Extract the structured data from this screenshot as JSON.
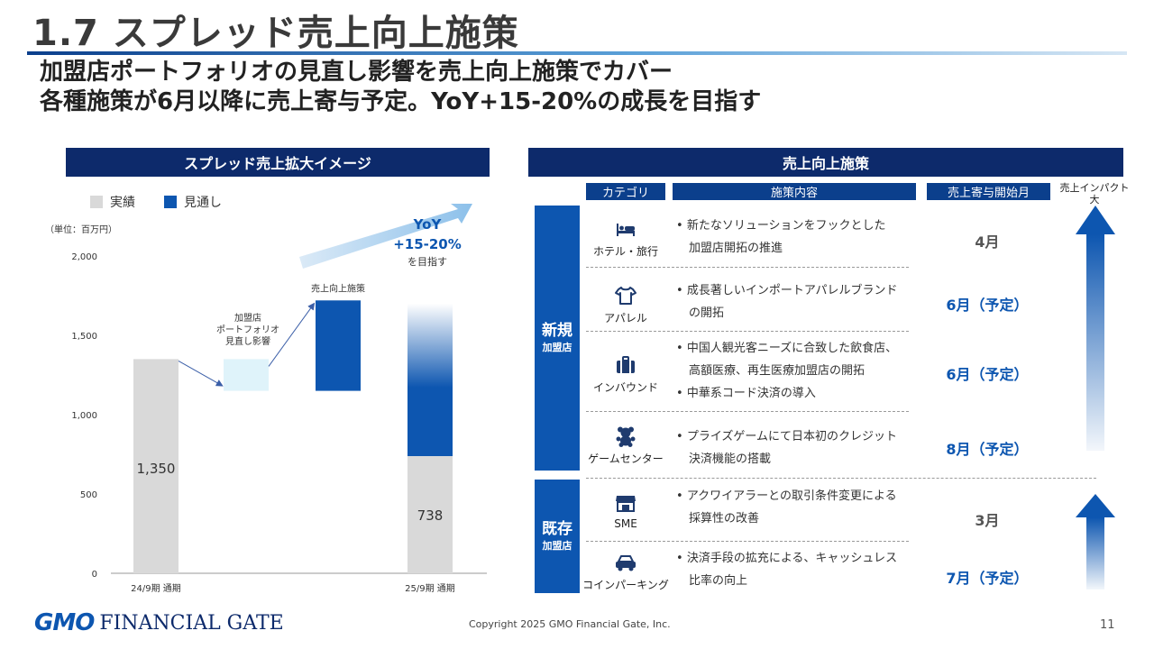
{
  "header": {
    "title": "1.7 スプレッド売上向上施策",
    "subtitle_line1": "加盟店ポートフォリオの見直し影響を売上向上施策でカバー",
    "subtitle_line2": "各種施策が6月以降に売上寄与予定。YoY+15-20%の成長を目指す"
  },
  "left_panel": {
    "header": "スプレッド売上拡大イメージ",
    "legend": [
      {
        "label": "実績",
        "color": "#d9d9d9"
      },
      {
        "label": "見通し",
        "color": "#0d56b0"
      }
    ],
    "unit": "（単位：百万円）",
    "yoy": {
      "line1": "YoY",
      "line2": "+15-20%",
      "line3": "を目指す"
    }
  },
  "chart_data": {
    "type": "bar",
    "title": "スプレッド売上拡大イメージ",
    "unit": "（単位：百万円）",
    "ylim": [
      0,
      2000
    ],
    "yticks": [
      0,
      500,
      1000,
      1500,
      2000
    ],
    "ytick_labels": [
      "0",
      "500",
      "1,000",
      "1,500",
      "2,000"
    ],
    "categories": [
      "24/9期 通期",
      "",
      "",
      "25/9期 通期"
    ],
    "bars": [
      {
        "category": "24/9期 通期",
        "kind": "actual",
        "bottom": 0,
        "top": 1350,
        "label": "1,350"
      },
      {
        "kind": "portfolio",
        "bottom": 1150,
        "top": 1350,
        "annotation": [
          "加盟店",
          "ポートフォリオ",
          "見直し影響"
        ]
      },
      {
        "kind": "measures",
        "bottom": 1150,
        "top": 1720,
        "annotation": [
          "売上向上施策"
        ]
      },
      {
        "category": "25/9期 通期",
        "kind": "stacked",
        "actual": 738,
        "actual_label": "738",
        "forecast_top": 1700
      }
    ],
    "colors": {
      "actual": "#d9d9d9",
      "forecast": "#0d56b0",
      "portfolio": "#dff3fa"
    }
  },
  "right_panel": {
    "header": "売上向上施策",
    "columns": {
      "category": "カテゴリ",
      "content": "施策内容",
      "month": "売上寄与開始月",
      "impact": "売上インパクト大"
    },
    "groups": [
      {
        "label_big": "新規",
        "label_small": "加盟店"
      },
      {
        "label_big": "既存",
        "label_small": "加盟店"
      }
    ],
    "rows": [
      {
        "icon": "bed-icon",
        "category": "ホテル・旅行",
        "lines": [
          "新たなソリューションをフックとした",
          "加盟店開拓の推進"
        ],
        "month": "4月",
        "planned": false
      },
      {
        "icon": "tshirt-icon",
        "category": "アパレル",
        "lines": [
          "成長著しいインポートアパレルブランド",
          "の開拓"
        ],
        "month": "6月（予定）",
        "planned": true
      },
      {
        "icon": "suitcase-icon",
        "category": "インバウンド",
        "lines": [
          "中国人観光客ニーズに合致した飲食店、",
          "高額医療、再生医療加盟店の開拓",
          "中華系コード決済の導入"
        ],
        "month": "6月（予定）",
        "planned": true
      },
      {
        "icon": "teddy-bear-icon",
        "category": "ゲームセンター",
        "lines": [
          "プライズゲームにて日本初のクレジット",
          "決済機能の搭載"
        ],
        "month": "8月（予定）",
        "planned": true
      },
      {
        "icon": "shop-icon",
        "category": "SME",
        "lines": [
          "アクワイアラーとの取引条件変更による",
          "採算性の改善"
        ],
        "month": "3月",
        "planned": false
      },
      {
        "icon": "car-icon",
        "category": "コインパーキング",
        "lines": [
          "決済手段の拡充による、キャッシュレス",
          "比率の向上"
        ],
        "month": "7月（予定）",
        "planned": true
      }
    ]
  },
  "footer": {
    "logo_gmo": "GMO",
    "logo_rest": "FINANCIAL GATE",
    "copyright": "Copyright 2025 GMO Financial Gate, Inc.",
    "page": "11"
  }
}
